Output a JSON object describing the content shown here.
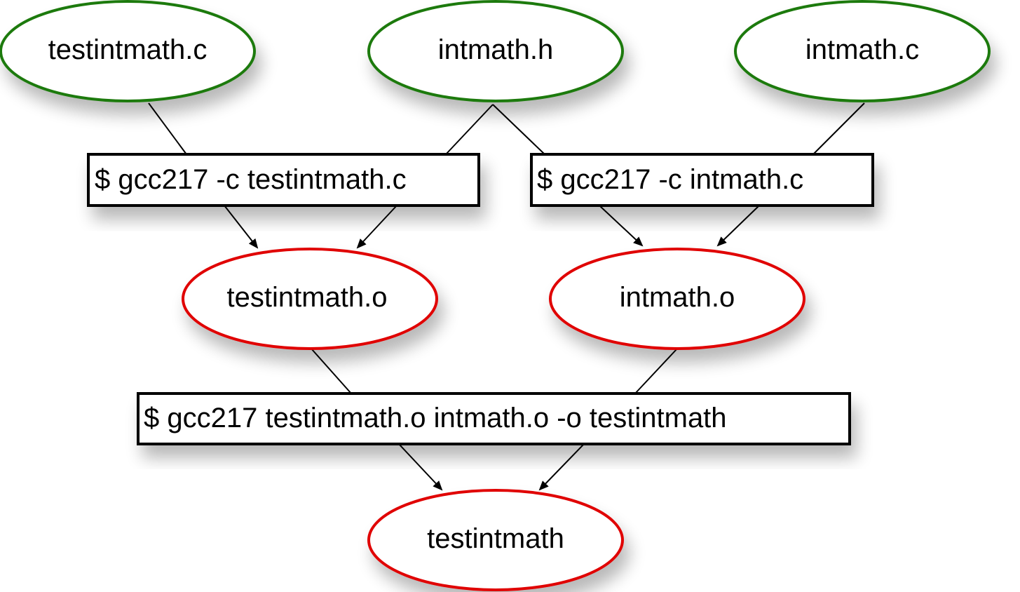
{
  "colors": {
    "source_border": "#1f7a0a",
    "output_border": "#e00000",
    "command_border": "#000000",
    "edge": "#000000"
  },
  "sources": {
    "testintmath_c": "testintmath.c",
    "intmath_h": "intmath.h",
    "intmath_c": "intmath.c"
  },
  "commands": {
    "compile_testintmath": "$ gcc217 -c testintmath.c",
    "compile_intmath": "$ gcc217 -c intmath.c",
    "link": "$ gcc217 testintmath.o intmath.o -o testintmath"
  },
  "outputs": {
    "testintmath_o": "testintmath.o",
    "intmath_o": "intmath.o",
    "testintmath": "testintmath"
  }
}
